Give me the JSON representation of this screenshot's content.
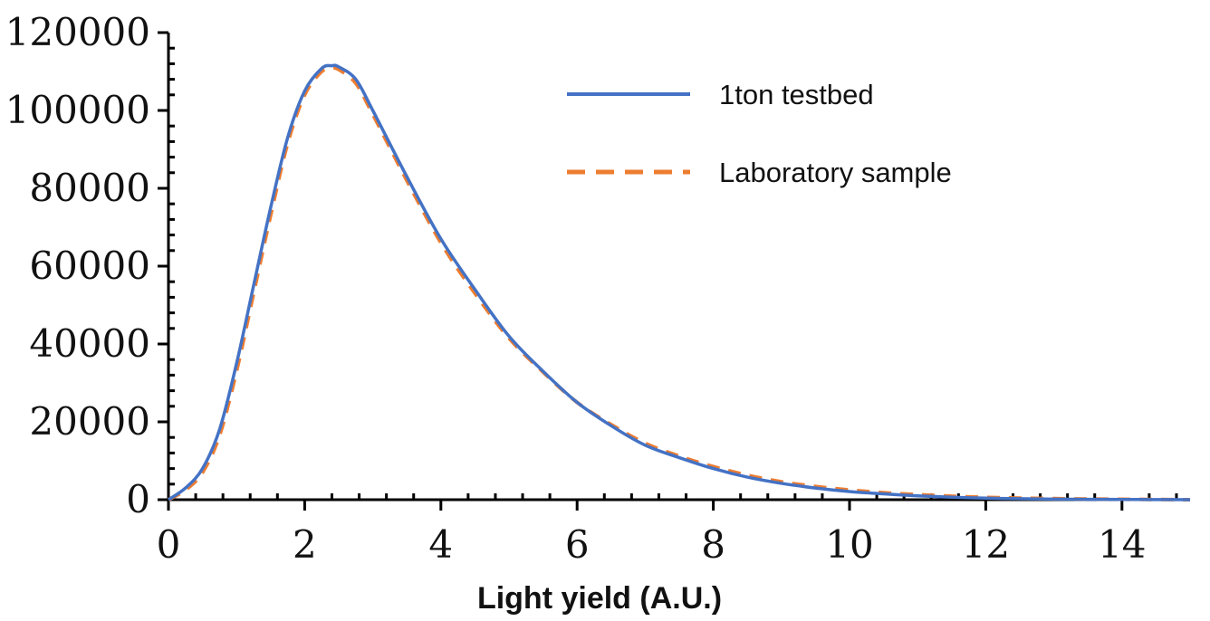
{
  "chart_data": {
    "type": "line",
    "title": "",
    "xlabel": "Light yield (A.U.)",
    "ylabel": "",
    "xlim": [
      0,
      15
    ],
    "ylim": [
      0,
      120000
    ],
    "xticks": [
      0,
      2,
      4,
      6,
      8,
      10,
      12,
      14
    ],
    "yticks": [
      0,
      20000,
      40000,
      60000,
      80000,
      100000,
      120000
    ],
    "legend_position": "top-right",
    "series": [
      {
        "name": "1ton testbed",
        "color": "#4472C4",
        "style": "solid",
        "x": [
          0,
          0.25,
          0.5,
          0.75,
          1.0,
          1.25,
          1.5,
          1.75,
          2.0,
          2.25,
          2.4,
          2.5,
          2.75,
          3.0,
          3.5,
          4.0,
          4.5,
          5.0,
          5.5,
          6.0,
          6.5,
          7.0,
          7.5,
          8.0,
          8.5,
          9.0,
          9.5,
          10.0,
          10.5,
          11.0,
          11.5,
          12.0,
          12.5,
          13.0,
          13.5,
          14.0,
          14.5,
          15.0
        ],
        "values": [
          0,
          3000,
          8000,
          18000,
          35000,
          55000,
          75000,
          93000,
          105000,
          110800,
          111500,
          111200,
          108000,
          100000,
          83000,
          67000,
          54000,
          42000,
          33000,
          25000,
          19000,
          14000,
          10800,
          8000,
          5800,
          4200,
          3000,
          2100,
          1500,
          1000,
          650,
          400,
          250,
          150,
          100,
          60,
          30,
          0
        ]
      },
      {
        "name": "Laboratory sample",
        "color": "#ED7D31",
        "style": "dashed",
        "x": [
          0,
          0.25,
          0.5,
          0.75,
          1.0,
          1.25,
          1.5,
          1.75,
          2.0,
          2.25,
          2.4,
          2.5,
          2.75,
          3.0,
          3.5,
          4.0,
          4.5,
          5.0,
          5.5,
          6.0,
          6.5,
          7.0,
          7.5,
          8.0,
          8.5,
          9.0,
          9.5,
          10.0,
          10.5,
          11.0,
          11.5,
          12.0,
          12.5,
          13.0,
          13.5,
          14.0,
          14.5,
          15.0
        ],
        "values": [
          0,
          2500,
          7000,
          16500,
          33000,
          53000,
          73000,
          91500,
          104000,
          110000,
          110800,
          110500,
          107000,
          99000,
          82000,
          66000,
          53000,
          41500,
          32800,
          25000,
          19300,
          14500,
          11200,
          8500,
          6300,
          4600,
          3400,
          2500,
          1800,
          1300,
          900,
          600,
          420,
          280,
          180,
          110,
          60,
          0
        ]
      }
    ]
  }
}
